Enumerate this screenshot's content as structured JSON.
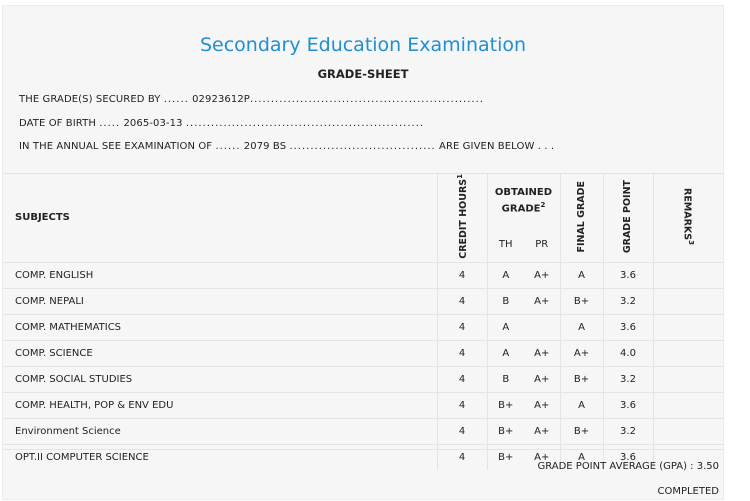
{
  "header": {
    "title": "Secondary Education Examination",
    "subtitle": "GRADE-SHEET"
  },
  "info": {
    "secured_label": "THE GRADE(S) SECURED BY",
    "secured_lead": "......",
    "secured_value": "02923612P",
    "secured_trail": "........................................................",
    "dob_label": "DATE OF BIRTH",
    "dob_lead": ".....",
    "dob_value": "2065-03-13",
    "dob_trail": ".........................................................",
    "exam_label": "IN THE ANNUAL SEE EXAMINATION OF",
    "exam_lead": "......",
    "exam_value": "2079 BS",
    "exam_trail": "...................................",
    "exam_suffix": "ARE GIVEN BELOW . . ."
  },
  "table": {
    "col_subjects": "SUBJECTS",
    "col_credit": "CREDIT HOURS",
    "col_credit_sup": "1",
    "col_obtained": "OBTAINED GRADE",
    "col_obtained_sup": "2",
    "col_th": "TH",
    "col_pr": "PR",
    "col_final": "FINAL GRADE",
    "col_point": "GRADE POINT",
    "col_remarks": "REMARKS",
    "col_remarks_sup": "3",
    "rows": [
      {
        "subject": "COMP. ENGLISH",
        "credit": "4",
        "th": "A",
        "pr": "A+",
        "final": "A",
        "point": "3.6",
        "remarks": ""
      },
      {
        "subject": "COMP. NEPALI",
        "credit": "4",
        "th": "B",
        "pr": "A+",
        "final": "B+",
        "point": "3.2",
        "remarks": ""
      },
      {
        "subject": "COMP. MATHEMATICS",
        "credit": "4",
        "th": "A",
        "pr": "",
        "final": "A",
        "point": "3.6",
        "remarks": ""
      },
      {
        "subject": "COMP. SCIENCE",
        "credit": "4",
        "th": "A",
        "pr": "A+",
        "final": "A+",
        "point": "4.0",
        "remarks": ""
      },
      {
        "subject": "COMP. SOCIAL STUDIES",
        "credit": "4",
        "th": "B",
        "pr": "A+",
        "final": "B+",
        "point": "3.2",
        "remarks": ""
      },
      {
        "subject": "COMP. HEALTH, POP & ENV EDU",
        "credit": "4",
        "th": "B+",
        "pr": "A+",
        "final": "A",
        "point": "3.6",
        "remarks": ""
      },
      {
        "subject": "Environment Science",
        "credit": "4",
        "th": "B+",
        "pr": "A+",
        "final": "B+",
        "point": "3.2",
        "remarks": ""
      },
      {
        "subject": "OPT.II COMPUTER SCIENCE",
        "credit": "4",
        "th": "B+",
        "pr": "A+",
        "final": "A",
        "point": "3.6",
        "remarks": ""
      }
    ]
  },
  "footer": {
    "gpa_text": "GRADE POINT AVERAGE (GPA) : 3.50",
    "status": "COMPLETED"
  },
  "colors": {
    "title": "#1f8fd3",
    "background": "#f6f6f6"
  }
}
